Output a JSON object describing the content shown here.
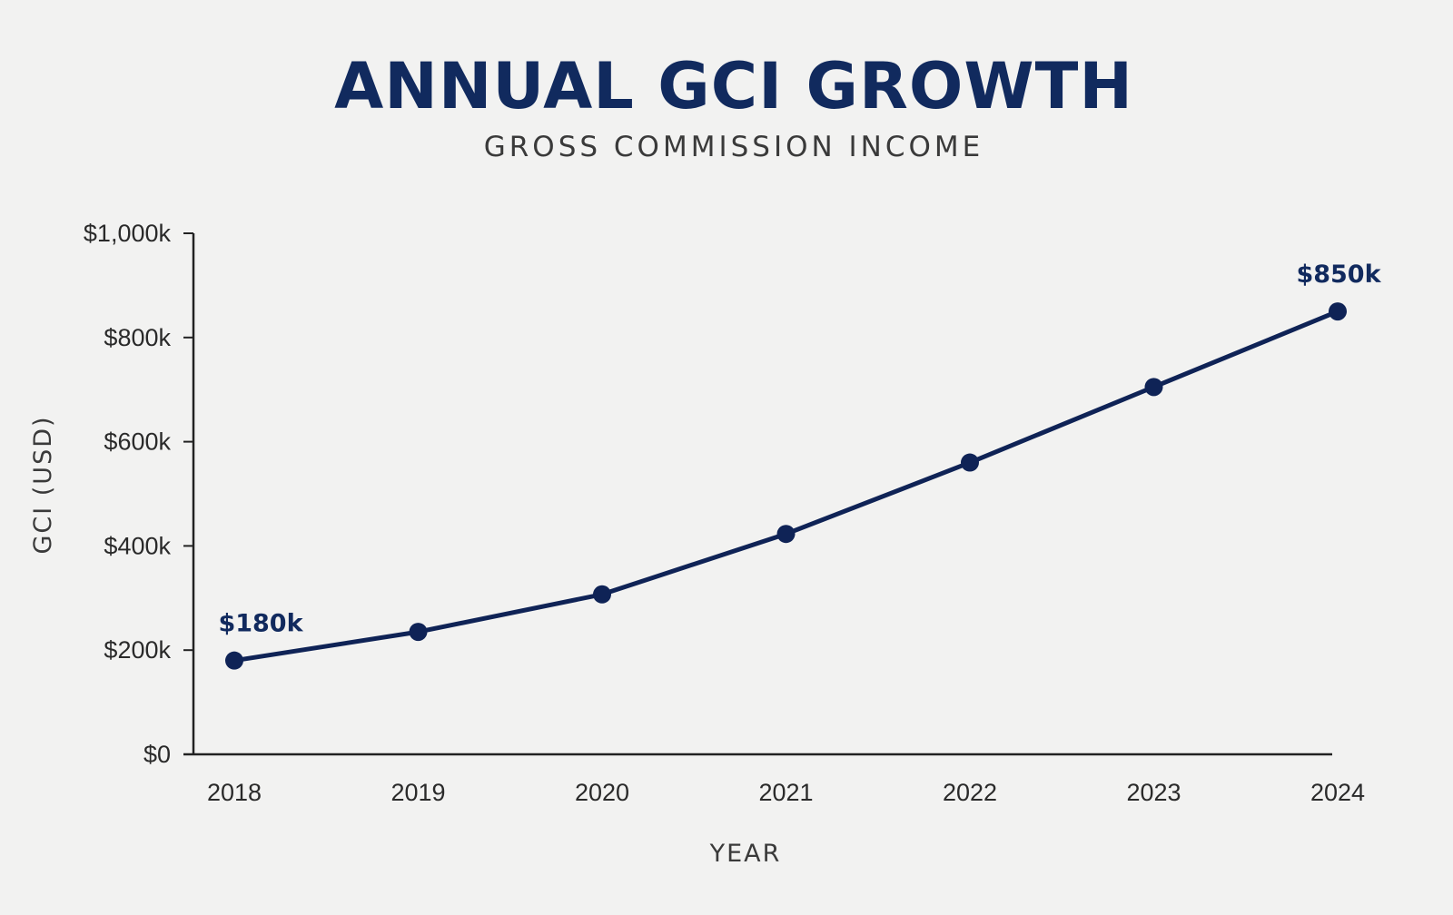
{
  "chart_data": {
    "type": "line",
    "title": "ANNUAL GCI GROWTH",
    "subtitle": "GROSS COMMISSION INCOME",
    "xlabel": "YEAR",
    "ylabel": "GCI (USD)",
    "categories": [
      "2018",
      "2019",
      "2020",
      "2021",
      "2022",
      "2023",
      "2024"
    ],
    "series": [
      {
        "values": [
          180,
          235,
          307,
          423,
          560,
          705,
          850
        ],
        "color": "#0f2356"
      }
    ],
    "ylim": [
      0,
      1000
    ],
    "yticks": [
      0,
      200,
      400,
      600,
      800,
      1000
    ],
    "ytick_labels": [
      "$0",
      "$200k",
      "$400k",
      "$600k",
      "$800k",
      "$1,000k"
    ],
    "annotations": [
      {
        "category": "2018",
        "value": 180,
        "text": "$180k"
      },
      {
        "category": "2024",
        "value": 850,
        "text": "$850k"
      }
    ],
    "grid": false,
    "legend": "none",
    "colors": {
      "title": "#112a5e",
      "subtitle": "#3a3a3a",
      "line": "#0f2356",
      "axis": "#222222",
      "tick_label": "#2a2a2a",
      "annotation": "#112a5e",
      "background": "#f2f2f1"
    }
  }
}
